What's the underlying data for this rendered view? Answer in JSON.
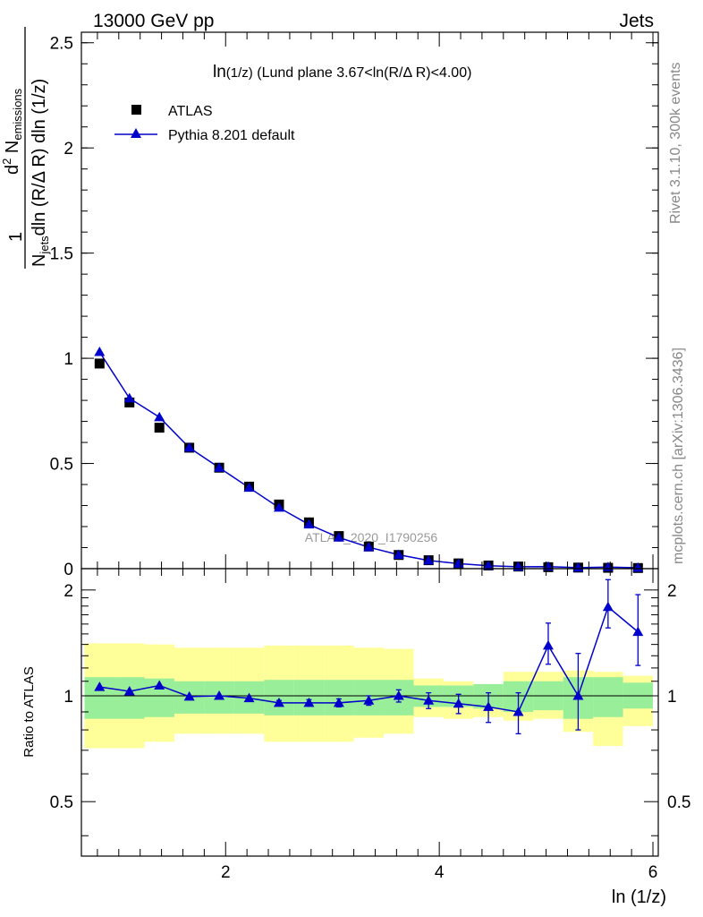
{
  "header": {
    "left": "13000 GeV pp",
    "right": "Jets"
  },
  "side_labels": {
    "rivet": "Rivet 3.1.10,  300k events",
    "mcplots": "mcplots.cern.ch [arXiv:1306.3436]"
  },
  "watermark": "ATLAS_2020_I1790256",
  "legend": {
    "data": "ATLAS",
    "mc": "Pythia 8.201 default"
  },
  "chart_data": [
    {
      "type": "scatter",
      "title_main": "ln",
      "title_sub": "(1/z)",
      "title_rest": " (Lund plane 3.67<ln(R/Δ R)<4.00)",
      "ylabel": {
        "prefix": "1",
        "njets": "N",
        "njets_sub": "jets",
        "d2": "d",
        "d2_sup": "2",
        "n": " N",
        "n_sub": "emissions",
        "denominator": "dln (R/Δ R) dln (1/z)"
      },
      "xlabel": "ln (1/z)",
      "xlim": [
        0.65,
        6.05
      ],
      "ylim": [
        0,
        2.55
      ],
      "y_ticks": [
        0,
        0.5,
        1,
        1.5,
        2,
        2.5
      ],
      "y_tick_labels": [
        "0",
        "0.5",
        "1",
        "1.5",
        "2",
        "2.5"
      ],
      "x": [
        0.82,
        1.1,
        1.38,
        1.66,
        1.94,
        2.22,
        2.5,
        2.78,
        3.06,
        3.34,
        3.62,
        3.9,
        4.18,
        4.46,
        4.74,
        5.02,
        5.3,
        5.58,
        5.86
      ],
      "series": [
        {
          "name": "ATLAS",
          "values": [
            0.975,
            0.79,
            0.67,
            0.575,
            0.48,
            0.39,
            0.305,
            0.22,
            0.155,
            0.105,
            0.065,
            0.04,
            0.025,
            0.015,
            0.01,
            0.007,
            0.005,
            0.004,
            0.003
          ],
          "color": "#000000",
          "marker": "square"
        },
        {
          "name": "Pythia 8.201 default",
          "values": [
            1.03,
            0.81,
            0.72,
            0.575,
            0.48,
            0.385,
            0.29,
            0.21,
            0.148,
            0.102,
            0.066,
            0.039,
            0.024,
            0.014,
            0.009,
            0.0098,
            0.005,
            0.0072,
            0.0045
          ],
          "color": "#0000cc",
          "marker": "triangle"
        }
      ]
    },
    {
      "type": "line",
      "ylabel": "Ratio to ATLAS",
      "xlim": [
        0.65,
        6.05
      ],
      "ylim": [
        0.35,
        2.3
      ],
      "x_ticks": [
        2,
        4,
        6
      ],
      "x_tick_labels": [
        "2",
        "4",
        "6"
      ],
      "y_ticks": [
        0.5,
        1,
        2
      ],
      "y_tick_labels": [
        "0.5",
        "1",
        "2"
      ],
      "x_edges": [
        0.68,
        0.96,
        1.24,
        1.52,
        1.8,
        2.08,
        2.36,
        2.64,
        2.92,
        3.2,
        3.48,
        3.76,
        4.04,
        4.32,
        4.6,
        4.88,
        5.16,
        5.44,
        5.72,
        6.0
      ],
      "band_inner": {
        "color": "#99ee99",
        "low": [
          0.86,
          0.86,
          0.87,
          0.89,
          0.89,
          0.89,
          0.88,
          0.88,
          0.88,
          0.88,
          0.88,
          0.93,
          0.93,
          0.92,
          0.9,
          0.91,
          0.86,
          0.87,
          0.92
        ],
        "high": [
          1.13,
          1.13,
          1.12,
          1.1,
          1.1,
          1.1,
          1.11,
          1.11,
          1.11,
          1.11,
          1.11,
          1.07,
          1.07,
          1.08,
          1.1,
          1.1,
          1.13,
          1.13,
          1.09
        ]
      },
      "band_outer": {
        "color": "#ffff99",
        "low": [
          0.71,
          0.71,
          0.74,
          0.78,
          0.78,
          0.78,
          0.74,
          0.74,
          0.74,
          0.76,
          0.78,
          0.87,
          0.86,
          0.87,
          0.85,
          0.86,
          0.79,
          0.72,
          0.82
        ],
        "high": [
          1.41,
          1.41,
          1.4,
          1.37,
          1.37,
          1.37,
          1.39,
          1.39,
          1.39,
          1.37,
          1.36,
          1.12,
          1.1,
          1.07,
          1.17,
          1.17,
          1.18,
          1.17,
          1.14
        ]
      },
      "x": [
        0.82,
        1.1,
        1.38,
        1.66,
        1.94,
        2.22,
        2.5,
        2.78,
        3.06,
        3.34,
        3.62,
        3.9,
        4.18,
        4.46,
        4.74,
        5.02,
        5.3,
        5.58,
        5.86
      ],
      "series": [
        {
          "name": "Pythia 8.201 default",
          "color": "#0000cc",
          "values": [
            1.06,
            1.03,
            1.07,
            0.995,
            1.0,
            0.985,
            0.955,
            0.955,
            0.955,
            0.97,
            1.0,
            0.97,
            0.95,
            0.93,
            0.9,
            1.39,
            1.0,
            1.79,
            1.52
          ],
          "err_low": [
            0,
            0,
            0,
            0,
            0,
            0,
            0.015,
            0.02,
            0.025,
            0.03,
            0.04,
            0.05,
            0.06,
            0.09,
            0.12,
            0.16,
            0.2,
            0.23,
            0.3
          ],
          "err_high": [
            0,
            0,
            0,
            0,
            0,
            0,
            0.015,
            0.02,
            0.025,
            0.03,
            0.04,
            0.05,
            0.06,
            0.09,
            0.12,
            0.22,
            0.32,
            0.35,
            0.42
          ]
        }
      ]
    }
  ]
}
